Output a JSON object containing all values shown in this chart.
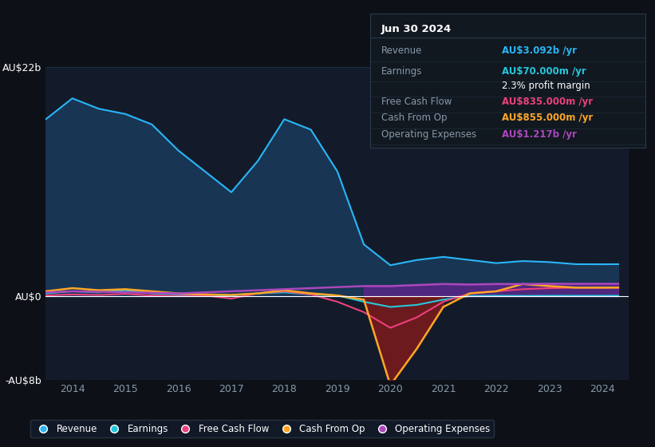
{
  "bg_color": "#0d1117",
  "plot_bg_color": "#131b2a",
  "grid_color": "#1e2d45",
  "title_color": "#ffffff",
  "label_color": "#8899aa",
  "ylim": [
    -8000000000.0,
    22000000000.0
  ],
  "yticks": [
    -8000000000.0,
    0,
    11000000000.0,
    22000000000.0
  ],
  "ytick_labels": [
    "-AU$8b",
    "AU$0",
    "",
    "AU$22b"
  ],
  "years": [
    2013.5,
    2014,
    2014.5,
    2015,
    2015.5,
    2016,
    2016.5,
    2017,
    2017.5,
    2018,
    2018.5,
    2019,
    2019.5,
    2020,
    2020.5,
    2021,
    2021.5,
    2022,
    2022.5,
    2023,
    2023.5,
    2024,
    2024.3
  ],
  "revenue": [
    17000000000.0,
    19000000000.0,
    18000000000.0,
    17500000000.0,
    16500000000.0,
    14000000000.0,
    12000000000.0,
    10000000000.0,
    13000000000.0,
    17000000000.0,
    16000000000.0,
    12000000000.0,
    5000000000.0,
    3000000000.0,
    3500000000.0,
    3800000000.0,
    3500000000.0,
    3200000000.0,
    3400000000.0,
    3300000000.0,
    3100000000.0,
    3092000000.0,
    3100000000.0
  ],
  "earnings": [
    300000000.0,
    500000000.0,
    400000000.0,
    600000000.0,
    300000000.0,
    200000000.0,
    150000000.0,
    100000000.0,
    300000000.0,
    400000000.0,
    200000000.0,
    100000000.0,
    -500000000.0,
    -1000000000.0,
    -800000000.0,
    -300000000.0,
    50000000.0,
    70000000.0,
    60000000.0,
    70000000.0,
    70000000.0,
    70000000.0,
    70000000.0
  ],
  "free_cash_flow": [
    100000000.0,
    200000000.0,
    150000000.0,
    250000000.0,
    100000000.0,
    50000000.0,
    100000000.0,
    -200000000.0,
    300000000.0,
    500000000.0,
    200000000.0,
    -500000000.0,
    -1500000000.0,
    -3000000000.0,
    -2000000000.0,
    -500000000.0,
    300000000.0,
    500000000.0,
    700000000.0,
    800000000.0,
    850000000.0,
    835000000.0,
    840000000.0
  ],
  "cash_from_op": [
    500000000.0,
    800000000.0,
    600000000.0,
    700000000.0,
    500000000.0,
    300000000.0,
    200000000.0,
    150000000.0,
    300000000.0,
    600000000.0,
    300000000.0,
    100000000.0,
    -300000000.0,
    -8500000000.0,
    -5000000000.0,
    -1000000000.0,
    300000000.0,
    500000000.0,
    1200000000.0,
    1000000000.0,
    850000000.0,
    855000000.0,
    860000000.0
  ],
  "operating_expenses": [
    400000000.0,
    500000000.0,
    450000000.0,
    400000000.0,
    350000000.0,
    300000000.0,
    400000000.0,
    500000000.0,
    600000000.0,
    700000000.0,
    800000000.0,
    900000000.0,
    1000000000.0,
    1000000000.0,
    1100000000.0,
    1200000000.0,
    1150000000.0,
    1200000000.0,
    1200000000.0,
    1220000000.0,
    1217000000.0,
    1217000000.0,
    1220000000.0
  ],
  "revenue_color": "#29b6f6",
  "revenue_fill": "#1a3a5c",
  "earnings_color": "#26c6da",
  "free_cash_flow_color": "#ec407a",
  "cash_from_op_color": "#ffa726",
  "operating_expenses_color": "#ab47bc",
  "highlight_fill_color": "#7b1fa2",
  "dark_red_fill": "#8b1a1a",
  "info_box": {
    "date": "Jun 30 2024",
    "revenue_label": "Revenue",
    "revenue_value": "AU$3.092b /yr",
    "revenue_color": "#29b6f6",
    "earnings_label": "Earnings",
    "earnings_value": "AU$70.000m /yr",
    "earnings_color": "#26c6da",
    "profit_margin": "2.3% profit margin",
    "fcf_label": "Free Cash Flow",
    "fcf_value": "AU$835.000m /yr",
    "fcf_color": "#ec407a",
    "cashop_label": "Cash From Op",
    "cashop_value": "AU$855.000m /yr",
    "cashop_color": "#ffa726",
    "opex_label": "Operating Expenses",
    "opex_value": "AU$1.217b /yr",
    "opex_color": "#ab47bc"
  },
  "legend_items": [
    {
      "label": "Revenue",
      "color": "#29b6f6"
    },
    {
      "label": "Earnings",
      "color": "#26c6da"
    },
    {
      "label": "Free Cash Flow",
      "color": "#ec407a"
    },
    {
      "label": "Cash From Op",
      "color": "#ffa726"
    },
    {
      "label": "Operating Expenses",
      "color": "#ab47bc"
    }
  ]
}
